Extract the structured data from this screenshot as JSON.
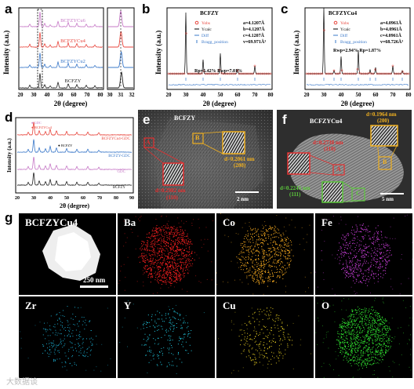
{
  "panels": {
    "a": {
      "letter": "a",
      "ylabel": "Intensity (a.u.)",
      "xlabel": "2θ (degree)",
      "series_labels": [
        "BCFZYCu6",
        "BCFZYCu4",
        "BCFZYCu2",
        "BCFZY"
      ],
      "series_colors": [
        "#c678c6",
        "#e8453c",
        "#3a78c9",
        "#222222"
      ],
      "xticks_main": [
        "20",
        "30",
        "40",
        "50",
        "60",
        "70",
        "80"
      ],
      "xticks_zoom": [
        "30",
        "31",
        "32"
      ]
    },
    "b": {
      "letter": "b",
      "title": "BCFZY",
      "ylabel": "Intensity (a.u.)",
      "xlabel": "2θ (degree)",
      "legend": [
        "Yobs",
        "Ycalc",
        "Diff",
        "Bragg_position"
      ],
      "params": [
        "a=4.1207Å",
        "b=4.1207Å",
        "c=4.1207Å",
        "v=69.971Å³"
      ],
      "r_values": "Rp=5.42%  Rwp=7.01%",
      "xticks": [
        "20",
        "30",
        "40",
        "50",
        "60",
        "70",
        "80"
      ]
    },
    "c": {
      "letter": "c",
      "title": "BCFZYCu4",
      "ylabel": "Intensity (a.u.)",
      "xlabel": "2θ (degree)",
      "legend": [
        "Yobs",
        "Ycalc",
        "Diff",
        "Bragg_position"
      ],
      "params": [
        "a=4.0961Å",
        "b=4.0961Å",
        "c=4.0961Å",
        "v=68.726Å³"
      ],
      "r_values": "Rwp=2.94%  Rp=1.87%",
      "xticks": [
        "20",
        "30",
        "40",
        "50",
        "60",
        "70",
        "80"
      ]
    },
    "d": {
      "letter": "d",
      "ylabel": "Intensity (a.u.)",
      "xlabel": "2θ (degree)",
      "series_labels": [
        "BCFZYCu4-GDC",
        "BCFZY-GDC",
        "GDC",
        "BCFZY"
      ],
      "series_colors": [
        "#e8453c",
        "#3a78c9",
        "#c678c6",
        "#222222"
      ],
      "markers": [
        "♦ GDC",
        "● BCFZYCu4",
        "● BCFZY"
      ],
      "xticks": [
        "20",
        "30",
        "40",
        "50",
        "60",
        "70",
        "80",
        "90"
      ]
    },
    "e": {
      "letter": "e",
      "title": "BCFZY",
      "box_a": "A",
      "box_b": "B",
      "d_a": "d=0.2982 nm",
      "hkl_a": "(110)",
      "d_b": "d=0.2061 nm",
      "hkl_b": "(200)",
      "scale": "2 nm"
    },
    "f": {
      "letter": "f",
      "title": "BCFZYCu4",
      "box_a": "A",
      "box_b": "B",
      "box_c": "C",
      "d_a": "d=0.2738 nm",
      "hkl_a": "(110)",
      "d_b": "d=0.1964 nm",
      "hkl_b": "(200)",
      "d_c": "d=0.2245 nm",
      "hkl_c": "(111)",
      "scale": "5 nm"
    },
    "g": {
      "letter": "g",
      "haadf_label": "BCFZYCu4",
      "scale": "250 nm",
      "maps": [
        {
          "label": "Ba",
          "color": "#ff2020"
        },
        {
          "label": "Co",
          "color": "#ffb020"
        },
        {
          "label": "Fe",
          "color": "#d040e0"
        },
        {
          "label": "Zr",
          "color": "#1aa6c8"
        },
        {
          "label": "Y",
          "color": "#22c8e0"
        },
        {
          "label": "Cu",
          "color": "#d8c020"
        },
        {
          "label": "O",
          "color": "#30e030"
        }
      ]
    }
  },
  "watermark": "大数据谈"
}
